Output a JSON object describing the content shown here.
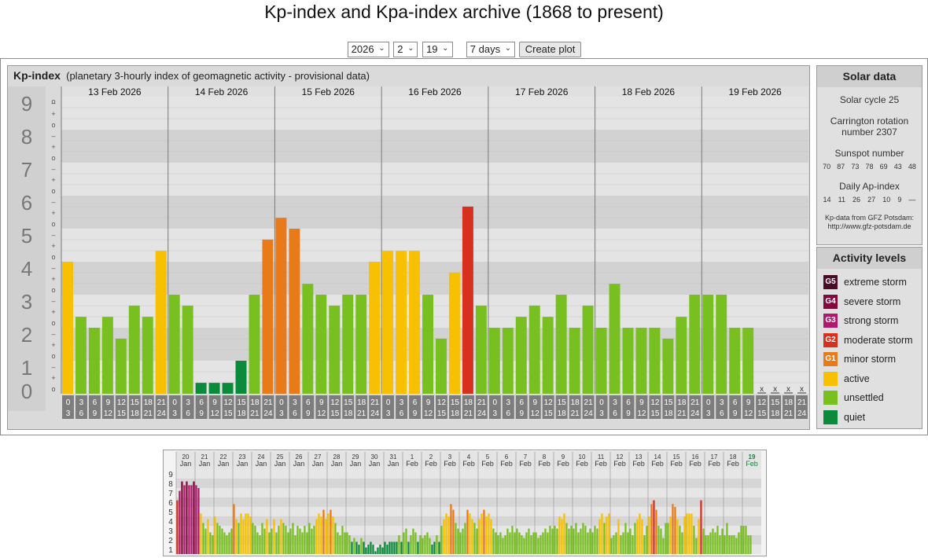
{
  "title": "Kp-index and Kpa-index archive (1868 to present)",
  "controls": {
    "year": "2026",
    "month": "2",
    "day": "19",
    "range": "7 days",
    "button_label": "Create plot"
  },
  "kp_panel": {
    "title": "Kp-index",
    "subtitle": "(planetary 3-hourly index of geomagnetic activity - provisional data)"
  },
  "solar": {
    "title": "Solar data",
    "cycle": "Solar cycle 25",
    "carrington": "Carrington rotation number 2307",
    "sunspot_label": "Sunspot number",
    "sunspot_values": [
      "70",
      "87",
      "73",
      "78",
      "69",
      "43",
      "48"
    ],
    "ap_label": "Daily Ap-index",
    "ap_values": [
      "14",
      "11",
      "26",
      "27",
      "10",
      "9",
      "—"
    ],
    "source_line1": "Kp-data from GFZ Potsdam:",
    "source_line2": "http://www.gfz-potsdam.de"
  },
  "activity": {
    "title": "Activity levels",
    "items": [
      {
        "badge": "G5",
        "label": "extreme storm",
        "color": "#4a0a28"
      },
      {
        "badge": "G4",
        "label": "severe storm",
        "color": "#800a3c"
      },
      {
        "badge": "G3",
        "label": "strong storm",
        "color": "#b0186c"
      },
      {
        "badge": "G2",
        "label": "moderate storm",
        "color": "#d8301e"
      },
      {
        "badge": "G1",
        "label": "minor storm",
        "color": "#e87a1a"
      },
      {
        "badge": "",
        "label": "active",
        "color": "#f7c000"
      },
      {
        "badge": "",
        "label": "unsettled",
        "color": "#78c020"
      },
      {
        "badge": "",
        "label": "quiet",
        "color": "#0a8a3a"
      }
    ]
  },
  "chart_data": [
    {
      "type": "bar",
      "ylim": [
        0,
        9
      ],
      "yticks": [
        "0",
        "1",
        "2",
        "3",
        "4",
        "5",
        "6",
        "7",
        "8",
        "9"
      ],
      "minor_ticks": [
        "o",
        "+",
        "–"
      ],
      "days": [
        "13 Feb 2026",
        "14 Feb 2026",
        "15 Feb 2026",
        "16 Feb 2026",
        "17 Feb 2026",
        "18 Feb 2026",
        "19 Feb 2026"
      ],
      "slots_top": [
        "0",
        "3",
        "6",
        "9",
        "12",
        "15",
        "18",
        "21"
      ],
      "slots_bottom": [
        "3",
        "6",
        "9",
        "12",
        "15",
        "18",
        "21",
        "24"
      ],
      "missing_mark": "x",
      "values": [
        4.0,
        2.33,
        2.0,
        2.33,
        1.67,
        2.67,
        2.33,
        4.33,
        3.0,
        2.67,
        0.33,
        0.33,
        0.33,
        1.0,
        3.0,
        4.67,
        5.33,
        5.0,
        3.33,
        3.0,
        2.67,
        3.0,
        3.0,
        4.0,
        4.33,
        4.33,
        4.33,
        3.0,
        1.67,
        3.67,
        5.67,
        2.67,
        2.0,
        2.0,
        2.33,
        2.67,
        2.33,
        3.0,
        2.0,
        2.67,
        2.0,
        3.33,
        2.0,
        2.0,
        2.0,
        1.67,
        2.33,
        3.0,
        3.0,
        3.0,
        2.0,
        2.0,
        null,
        null,
        null,
        null
      ],
      "colors": {
        "quiet": "#0a8a3a",
        "unsettled": "#78c020",
        "active": "#f7c000",
        "G1": "#e87a1a",
        "G2": "#d8301e",
        "G3": "#b0186c",
        "G4": "#800a3c",
        "G5": "#4a0a28"
      }
    },
    {
      "type": "bar",
      "ylim": [
        0,
        9
      ],
      "yticks": [
        "1",
        "2",
        "3",
        "4",
        "5",
        "6",
        "7",
        "8",
        "9"
      ],
      "days_top": [
        "20",
        "21",
        "22",
        "23",
        "24",
        "25",
        "26",
        "27",
        "28",
        "29",
        "30",
        "31",
        "1",
        "2",
        "3",
        "4",
        "5",
        "6",
        "7",
        "8",
        "9",
        "10",
        "11",
        "12",
        "13",
        "14",
        "15",
        "16",
        "17",
        "18",
        "19"
      ],
      "days_bottom": [
        "Jan",
        "Jan",
        "Jan",
        "Jan",
        "Jan",
        "Jan",
        "Jan",
        "Jan",
        "Jan",
        "Jan",
        "Jan",
        "Jan",
        "Feb",
        "Feb",
        "Feb",
        "Feb",
        "Feb",
        "Feb",
        "Feb",
        "Feb",
        "Feb",
        "Feb",
        "Feb",
        "Feb",
        "Feb",
        "Feb",
        "Feb",
        "Feb",
        "Feb",
        "Feb",
        "Feb"
      ],
      "values": [
        5.7,
        6.7,
        7.7,
        7.3,
        7.7,
        7.3,
        7.3,
        7.7,
        7.3,
        7.0,
        4.3,
        3.3,
        2.7,
        3.7,
        2.3,
        2.0,
        4.0,
        3.3,
        3.0,
        2.7,
        2.3,
        2.0,
        2.3,
        2.7,
        5.3,
        3.7,
        3.3,
        4.3,
        3.7,
        4.3,
        4.3,
        4.0,
        3.3,
        3.0,
        2.3,
        2.0,
        3.3,
        2.7,
        3.7,
        2.3,
        2.7,
        3.7,
        2.3,
        3.0,
        3.7,
        3.3,
        3.0,
        2.3,
        2.7,
        3.3,
        2.0,
        3.0,
        2.7,
        2.3,
        3.0,
        2.3,
        3.3,
        2.7,
        3.0,
        3.7,
        4.3,
        4.0,
        4.7,
        3.7,
        4.3,
        4.7,
        4.0,
        3.3,
        2.3,
        2.0,
        3.0,
        2.3,
        2.3,
        2.0,
        1.3,
        1.7,
        1.3,
        1.0,
        1.7,
        1.3,
        0.7,
        1.0,
        1.3,
        1.0,
        0.3,
        0.7,
        1.0,
        0.7,
        1.3,
        1.0,
        1.3,
        1.3,
        1.3,
        1.3,
        2.0,
        1.3,
        2.3,
        2.7,
        1.3,
        2.0,
        2.7,
        2.3,
        1.3,
        2.0,
        1.7,
        2.0,
        2.3,
        1.7,
        1.0,
        1.3,
        2.0,
        1.3,
        3.0,
        3.7,
        4.3,
        4.0,
        5.3,
        4.7,
        3.3,
        2.7,
        2.3,
        2.7,
        3.3,
        4.7,
        4.3,
        3.7,
        3.3,
        2.7,
        3.7,
        4.3,
        4.7,
        4.0,
        4.3,
        3.7,
        2.7,
        2.3,
        2.0,
        2.3,
        1.7,
        2.0,
        2.7,
        2.3,
        3.0,
        2.3,
        2.7,
        2.3,
        2.0,
        1.7,
        2.3,
        2.7,
        2.0,
        2.3,
        2.3,
        1.7,
        2.0,
        2.3,
        2.7,
        2.3,
        3.0,
        2.7,
        3.0,
        2.7,
        4.0,
        3.7,
        4.3,
        3.3,
        2.7,
        3.0,
        2.7,
        3.3,
        2.3,
        2.7,
        3.3,
        3.0,
        2.3,
        2.7,
        2.3,
        3.0,
        2.7,
        3.7,
        4.3,
        3.3,
        4.0,
        4.3,
        1.7,
        2.0,
        2.3,
        3.7,
        2.0,
        2.3,
        3.3,
        2.3,
        2.7,
        2.0,
        3.3,
        3.7,
        4.3,
        3.7,
        2.0,
        3.0,
        4.0,
        5.3,
        5.7,
        4.7,
        3.0,
        2.7,
        1.7,
        3.3,
        3.3,
        4.0,
        5.3,
        5.0,
        3.7,
        3.0,
        2.3,
        4.0,
        4.3,
        4.3,
        4.3,
        3.0,
        1.7,
        3.7,
        5.7,
        2.7,
        2.0,
        2.0,
        2.3,
        2.7,
        2.3,
        3.0,
        2.0,
        2.7,
        2.0,
        3.3,
        2.0,
        2.0,
        2.0,
        1.7,
        2.3,
        3.0,
        3.0,
        3.0,
        2.0,
        2.0
      ]
    }
  ]
}
